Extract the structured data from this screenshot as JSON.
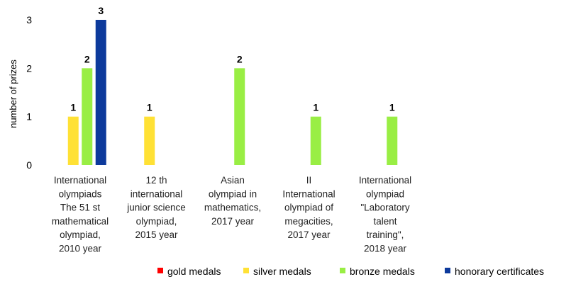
{
  "chart_data": {
    "type": "bar",
    "title": "",
    "xlabel": "",
    "ylabel": "number of prizes",
    "ylim": [
      0,
      3
    ],
    "yticks": [
      0,
      1,
      2,
      3
    ],
    "grid": false,
    "legend_position": "bottom",
    "categories": [
      [
        "International",
        "olympiads",
        "The 51 st",
        "mathematical",
        "olympiad,",
        "2010 year"
      ],
      [
        "12 th",
        "international",
        "junior science",
        "olympiad,",
        "2015 year"
      ],
      [
        "Asian",
        "olympiad in",
        "mathematics,",
        "2017 year"
      ],
      [
        "II",
        "International",
        "olympiad of",
        "megacities,",
        "2017 year"
      ],
      [
        "International",
        "olympiad",
        "\"Laboratory",
        "talent",
        "training\",",
        "2018 year"
      ]
    ],
    "series": [
      {
        "name": "gold medals",
        "color": "#ff0000",
        "values": [
          null,
          null,
          null,
          null,
          null
        ]
      },
      {
        "name": "silver medals",
        "color": "#ffe135",
        "values": [
          1,
          1,
          null,
          null,
          null
        ]
      },
      {
        "name": "bronze medals",
        "color": "#99ee44",
        "values": [
          2,
          null,
          2,
          1,
          1
        ]
      },
      {
        "name": "honorary certificates",
        "color": "#0d3a9c",
        "values": [
          3,
          null,
          null,
          null,
          null
        ]
      }
    ]
  }
}
